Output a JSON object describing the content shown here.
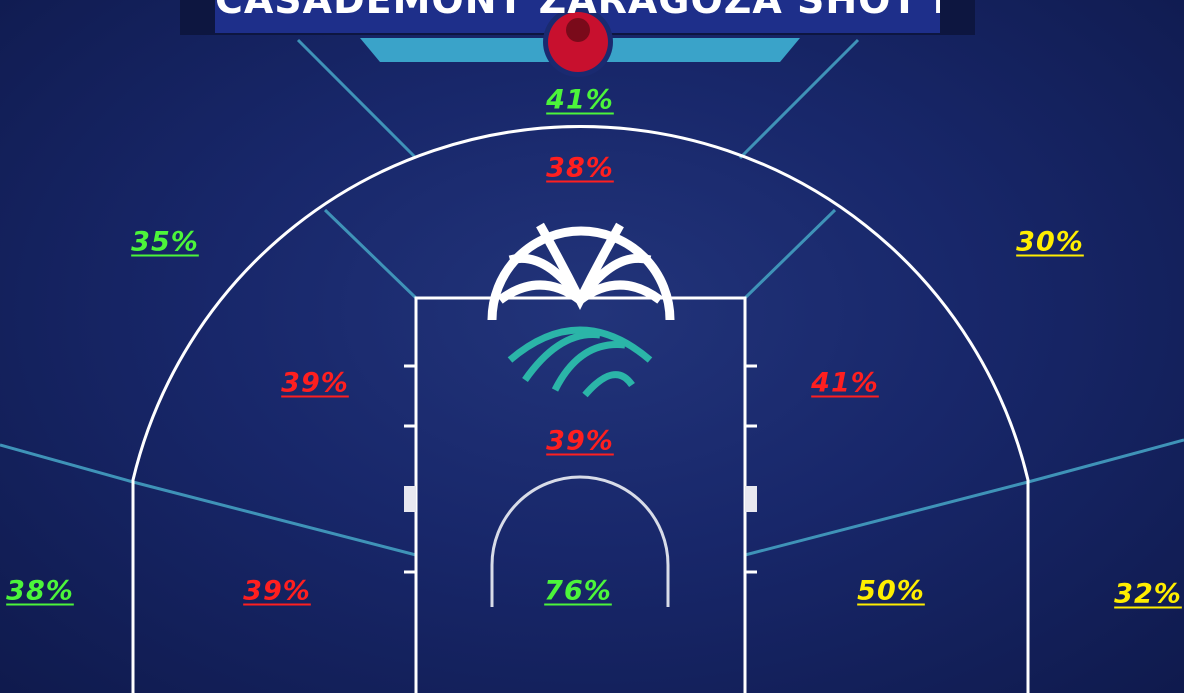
{
  "header": {
    "title": "CASADEMONT ZARAGOZA SHOT MAP"
  },
  "zones": [
    {
      "label": "41%",
      "color": "#4cf53a"
    },
    {
      "label": "38%",
      "color": "#ff1f1f"
    },
    {
      "label": "35%",
      "color": "#4cf53a"
    },
    {
      "label": "30%",
      "color": "#ffee00"
    },
    {
      "label": "39%",
      "color": "#ff1f1f"
    },
    {
      "label": "41%",
      "color": "#ff1f1f"
    },
    {
      "label": "39%",
      "color": "#ff1f1f"
    },
    {
      "label": "38%",
      "color": "#4cf53a"
    },
    {
      "label": "39%",
      "color": "#ff1f1f"
    },
    {
      "label": "76%",
      "color": "#4cf53a"
    },
    {
      "label": "50%",
      "color": "#ffee00"
    },
    {
      "label": "32%",
      "color": "#ffee00"
    }
  ]
}
